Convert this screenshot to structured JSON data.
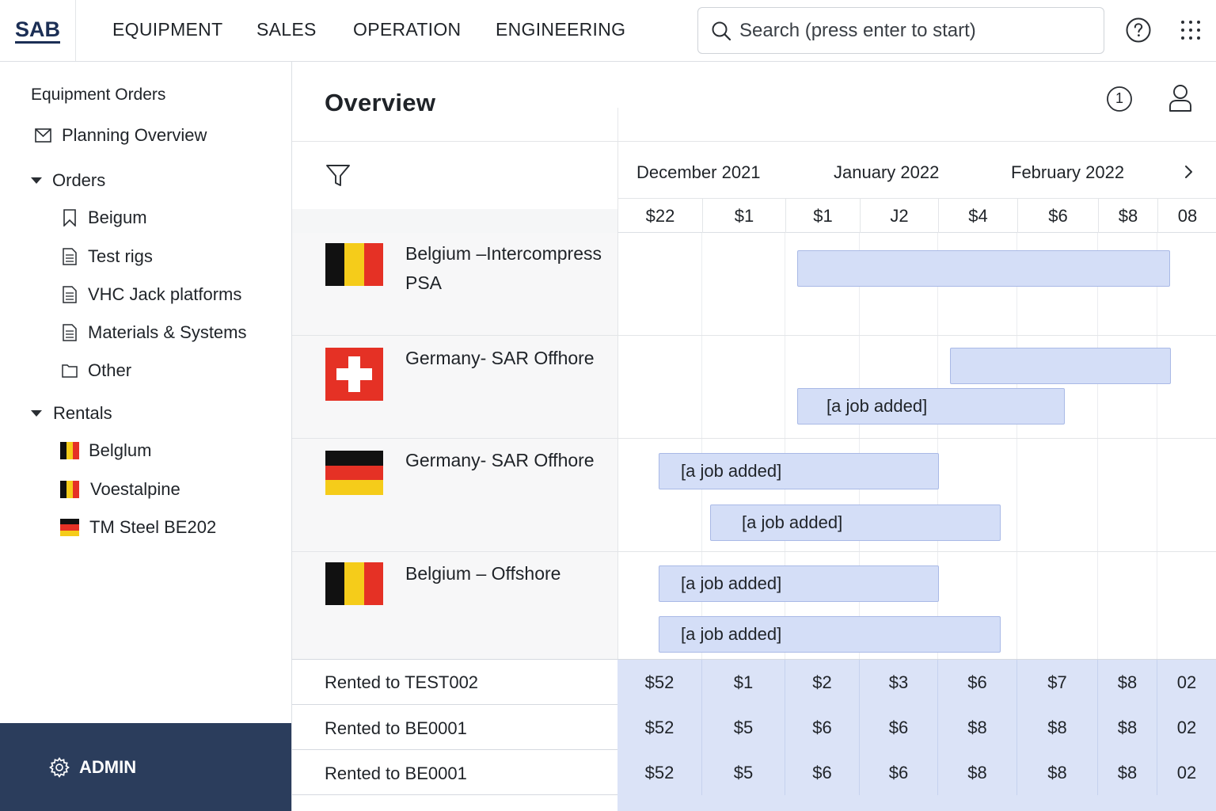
{
  "app": {
    "logo": "SAB"
  },
  "nav": {
    "items": [
      "EQUIPMENT",
      "SALES",
      "OPERATION",
      "ENGINEERING"
    ]
  },
  "search": {
    "placeholder": "Search (press enter to start)"
  },
  "icons": {
    "search": "search-icon",
    "help": "help-circle-icon",
    "apps": "apps-grid-icon",
    "filter": "filter-icon",
    "user": "user-icon",
    "info": "numbered-circle-icon",
    "next": "chevron-right-icon",
    "admin": "gear-icon"
  },
  "sidebar": {
    "title": "Equipment Orders",
    "planning": "Planning Overview",
    "orders": {
      "label": "Orders",
      "items": [
        "Beigum",
        "Test rigs",
        "VHC Jack platforms",
        "Materials & Systems",
        "Other"
      ]
    },
    "rentals": {
      "label": "Rentals",
      "items": [
        "Belglum",
        "Voestalpine",
        "TM Steel BE202"
      ]
    },
    "admin": "ADMIN"
  },
  "main": {
    "title": "Overview",
    "badge": "1",
    "months": [
      "December 2021",
      "January 2022",
      "February 2022"
    ],
    "weeks": [
      "$22",
      "$1",
      "$1",
      "J2",
      "$4",
      "$6",
      "$8",
      "08"
    ],
    "orders": [
      {
        "name": "Belgium –Intercompress PSA",
        "flag": "belgium",
        "jobs": [
          ""
        ]
      },
      {
        "name": "Germany- SAR Offhore",
        "flag": "switzerland",
        "jobs": [
          "",
          "[a job added]"
        ]
      },
      {
        "name": "Germany- SAR Offhore",
        "flag": "germany",
        "jobs": [
          "[a job added]",
          "[a job added]"
        ]
      },
      {
        "name": "Belgium – Offshore",
        "flag": "belgium",
        "jobs": [
          "[a job added]",
          "[a job added]"
        ]
      }
    ],
    "rentals": [
      {
        "label": "Rented to TEST002",
        "values": [
          "$52",
          "$1",
          "$2",
          "$3",
          "$6",
          "$7",
          "$8",
          "02"
        ]
      },
      {
        "label": "Rented to BE0001",
        "values": [
          "$52",
          "$5",
          "$6",
          "$6",
          "$8",
          "$8",
          "$8",
          "02"
        ]
      },
      {
        "label": "Rented to BE0001",
        "values": [
          "$52",
          "$5",
          "$6",
          "$6",
          "$8",
          "$8",
          "$8",
          "02"
        ]
      }
    ]
  },
  "colors": {
    "brand": "#1c2f55",
    "admin_bg": "#2b3d5c",
    "bar_fill": "#d4def7",
    "bar_border": "#a9b9e6",
    "belgium": [
      "#111111",
      "#f5cc1a",
      "#e53125"
    ],
    "germany": [
      "#111111",
      "#e53125",
      "#f5cc1a"
    ],
    "switzerland": "#e53125"
  }
}
